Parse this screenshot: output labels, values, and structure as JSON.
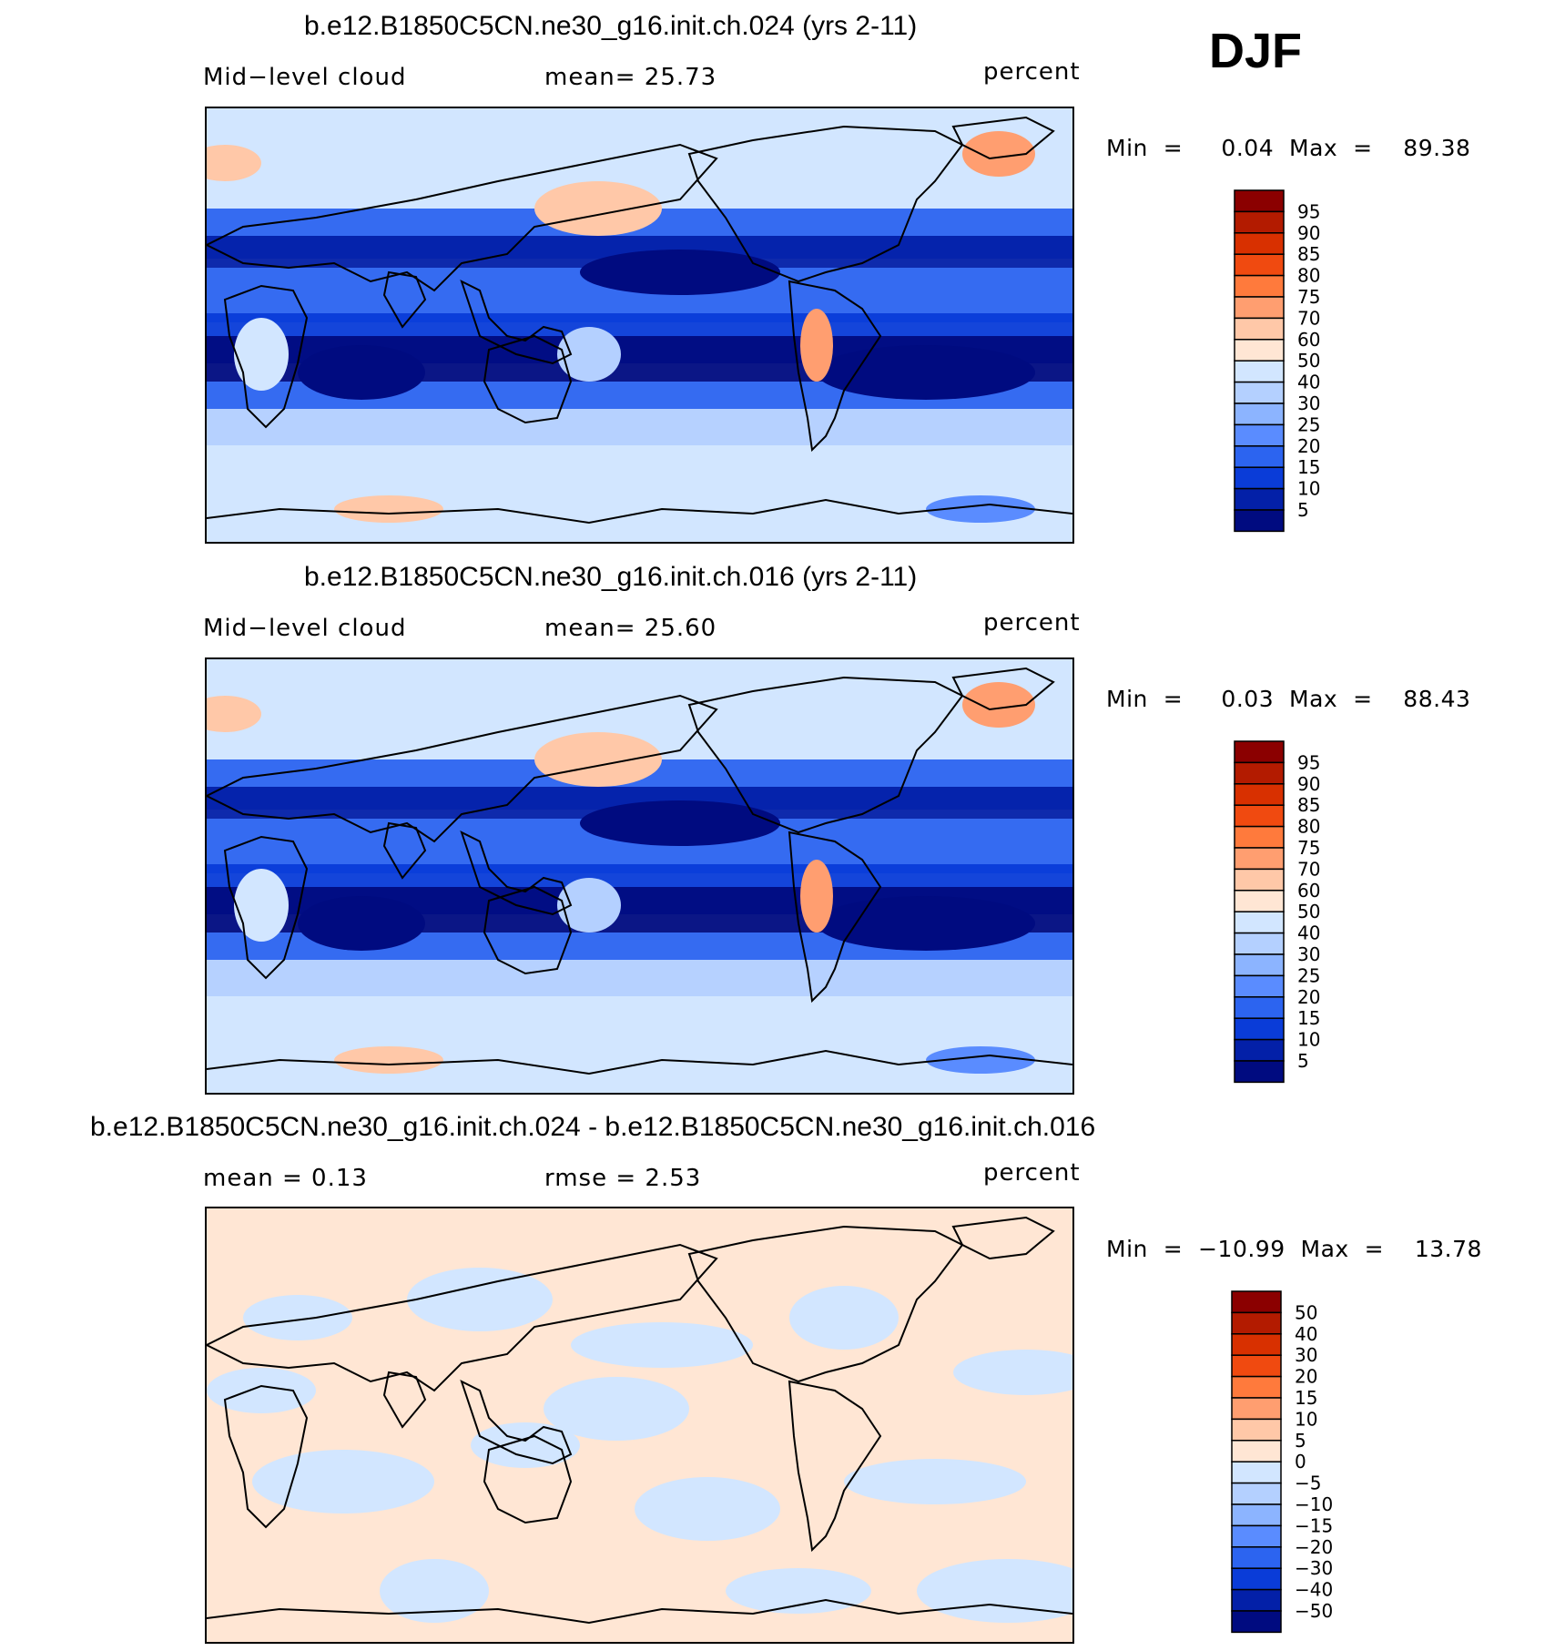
{
  "figure": {
    "season": "DJF"
  },
  "panels": [
    {
      "title": "b.e12.B1850C5CN.ne30_g16.init.ch.024 (yrs 2-11)",
      "left_label": "Mid−level  cloud",
      "center_label": "mean=   25.73",
      "right_label": "percent",
      "minmax": "Min  =     0.04  Max  =    89.38",
      "field": "model"
    },
    {
      "title": "b.e12.B1850C5CN.ne30_g16.init.ch.016 (yrs 2-11)",
      "left_label": "Mid−level  cloud",
      "center_label": "mean=   25.60",
      "right_label": "percent",
      "minmax": "Min  =     0.03  Max  =    88.43",
      "field": "model"
    },
    {
      "title": "b.e12.B1850C5CN.ne30_g16.init.ch.024 - b.e12.B1850C5CN.ne30_g16.init.ch.016",
      "left_label": "mean  =      0.13",
      "center_label": "rmse  =      2.53",
      "right_label": "percent",
      "minmax": "Min  =  −10.99  Max  =    13.78",
      "field": "difference"
    }
  ],
  "colorbars": {
    "model": {
      "labels": [
        "95",
        "90",
        "85",
        "80",
        "75",
        "70",
        "60",
        "50",
        "40",
        "30",
        "25",
        "20",
        "15",
        "10",
        "5"
      ],
      "colors": [
        "#8b0000",
        "#b31b00",
        "#d83000",
        "#f04a10",
        "#ff7a3c",
        "#ff9e70",
        "#ffc8a8",
        "#ffe6d4",
        "#d2e6ff",
        "#b4d0ff",
        "#8cb4ff",
        "#5a8cff",
        "#2c64f0",
        "#0a3cd8",
        "#0320a8",
        "#000b80"
      ]
    },
    "difference": {
      "labels": [
        "50",
        "40",
        "30",
        "20",
        "15",
        "10",
        "5",
        "0",
        "−5",
        "−10",
        "−15",
        "−20",
        "−30",
        "−40",
        "−50"
      ],
      "colors": [
        "#8b0000",
        "#b31b00",
        "#d83000",
        "#f04a10",
        "#ff7a3c",
        "#ff9e70",
        "#ffc8a8",
        "#ffe6d4",
        "#d2e6ff",
        "#b4d0ff",
        "#8cb4ff",
        "#5a8cff",
        "#2c64f0",
        "#0a3cd8",
        "#0320a8",
        "#000b80"
      ]
    }
  }
}
